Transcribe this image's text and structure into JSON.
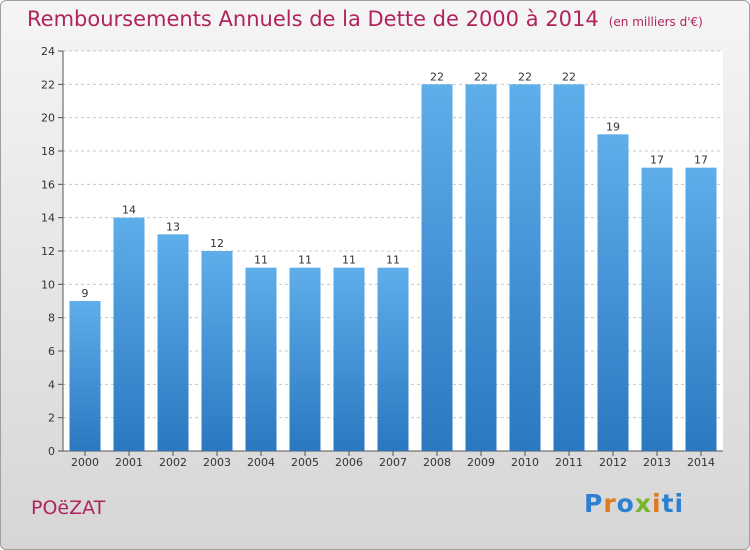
{
  "chart_data": {
    "type": "bar",
    "title": "Remboursements Annuels de la Dette de 2000 à 2014",
    "subtitle": "(en milliers d'€)",
    "categories": [
      "2000",
      "2001",
      "2002",
      "2003",
      "2004",
      "2005",
      "2006",
      "2007",
      "2008",
      "2009",
      "2010",
      "2011",
      "2012",
      "2013",
      "2014"
    ],
    "values": [
      9,
      14,
      13,
      12,
      11,
      11,
      11,
      11,
      22,
      22,
      22,
      22,
      19,
      17,
      17
    ],
    "ylim": [
      0,
      24
    ],
    "yticks": [
      0,
      2,
      4,
      6,
      8,
      10,
      12,
      14,
      16,
      18,
      20,
      22,
      24
    ],
    "xlabel": "",
    "ylabel": "",
    "grid": true
  },
  "footer": {
    "place": "POëZAT"
  },
  "logo": {
    "letters": [
      "P",
      "r",
      "o",
      "x",
      "i",
      "ti"
    ]
  },
  "colors": {
    "bar_top": "#5aa8e8",
    "bar_bottom": "#2a78c0",
    "title": "#b0245e"
  }
}
